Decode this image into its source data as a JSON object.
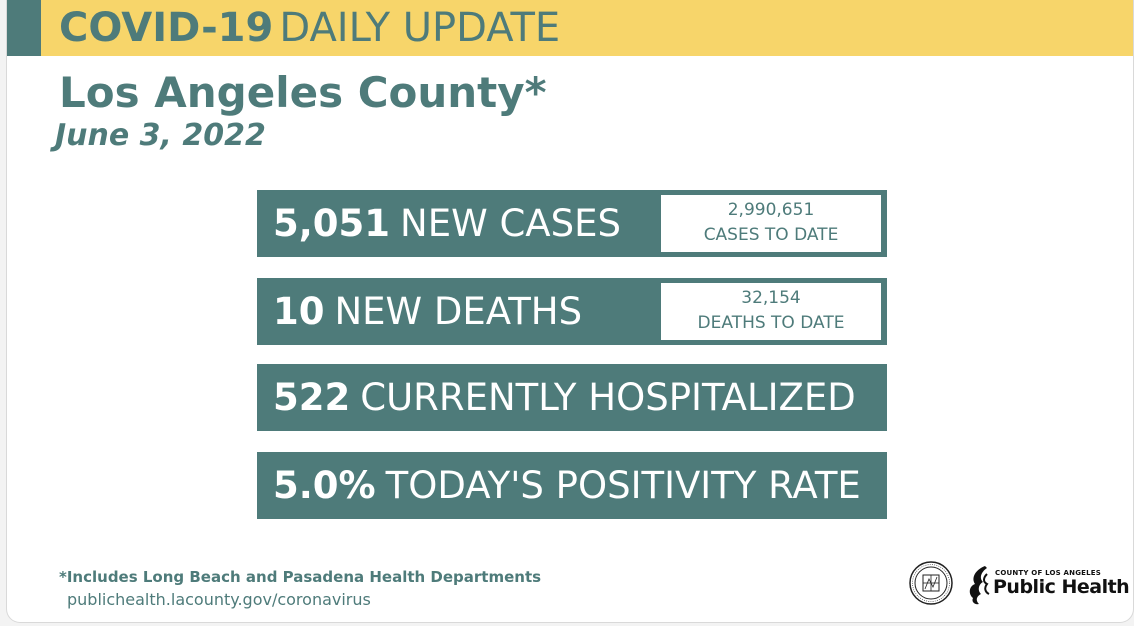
{
  "banner": {
    "title_bold": "COVID-19",
    "title_light": "DAILY UPDATE",
    "accent_color": "#4e7b7a",
    "background_color": "#f7d56a"
  },
  "header": {
    "county": "Los Angeles County*",
    "date": "June 3, 2022"
  },
  "stats": [
    {
      "value": "5,051",
      "label": "NEW CASES",
      "to_date_value": "2,990,651",
      "to_date_label": "CASES TO DATE"
    },
    {
      "value": "10",
      "label": "NEW DEATHS",
      "to_date_value": "32,154",
      "to_date_label": "DEATHS TO DATE"
    },
    {
      "value": "522",
      "label": "CURRENTLY HOSPITALIZED"
    },
    {
      "value": "5.0%",
      "label": "TODAY'S POSITIVITY RATE"
    }
  ],
  "footer": {
    "footnote": "*Includes Long Beach and Pasadena Health Departments",
    "url": "publichealth.lacounty.gov/coronavirus",
    "logo_small_text": "COUNTY OF LOS ANGELES",
    "logo_big_text": "Public Health",
    "seal_icon": "county-seal-icon",
    "logo_icon": "public-health-logo-icon"
  },
  "colors": {
    "teal": "#4e7b7a",
    "yellow": "#f7d56a",
    "white": "#ffffff"
  }
}
